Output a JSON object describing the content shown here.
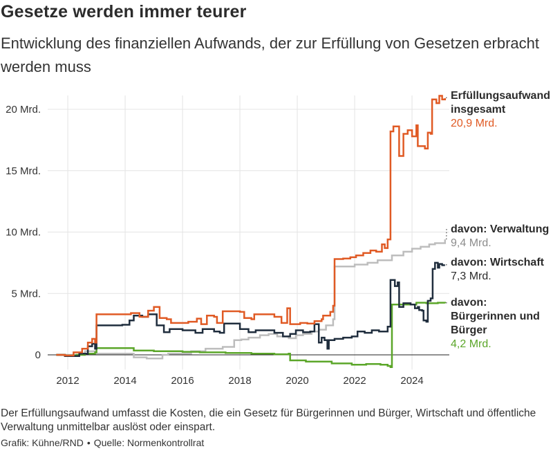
{
  "header": {
    "title": "Gesetze werden immer teurer",
    "subtitle": "Entwicklung des finanziellen Aufwands, der zur Erfüllung von Gesetzen erbracht werden muss"
  },
  "footer": {
    "note": "Der Erfüllungsaufwand umfasst die Kosten, die ein Gesetz für Bürgerinnen und Bürger, Wirtschaft und öffentliche Verwaltung unmittelbar auslöst oder einspart.",
    "credit": "Grafik: Kühne/RND",
    "source": "Quelle: Normenkontrollrat"
  },
  "chart_data": {
    "type": "line",
    "title": "",
    "xlabel": "",
    "ylabel": "",
    "xlim": [
      2011.3,
      2025.3
    ],
    "ylim": [
      -1.2,
      21.5
    ],
    "grid": true,
    "line_shape": "step",
    "x_ticks": [
      {
        "value": 2012,
        "label": "2012"
      },
      {
        "value": 2014,
        "label": "2014"
      },
      {
        "value": 2016,
        "label": "2016"
      },
      {
        "value": 2018,
        "label": "2018"
      },
      {
        "value": 2020,
        "label": "2020"
      },
      {
        "value": 2022,
        "label": "2022"
      },
      {
        "value": 2024,
        "label": "2024"
      }
    ],
    "y_ticks": [
      {
        "value": 0,
        "label": "0"
      },
      {
        "value": 5,
        "label": "5 Mrd."
      },
      {
        "value": 10,
        "label": "10 Mrd."
      },
      {
        "value": 15,
        "label": "15 Mrd."
      },
      {
        "value": 20,
        "label": "20 Mrd."
      }
    ],
    "series": [
      {
        "name": "Erfüllungsaufwand insgesamt",
        "label_lines": [
          "Erfüllungsaufwand",
          "insgesamt"
        ],
        "value_label": "20,9 Mrd.",
        "color": "#e05a24",
        "points": [
          [
            2011.6,
            0
          ],
          [
            2011.9,
            -0.05
          ],
          [
            2012.2,
            0.2
          ],
          [
            2012.5,
            0.5
          ],
          [
            2012.7,
            1.0
          ],
          [
            2012.85,
            1.3
          ],
          [
            2012.95,
            1.0
          ],
          [
            2013.0,
            3.3
          ],
          [
            2014.2,
            3.4
          ],
          [
            2014.5,
            3.1
          ],
          [
            2014.8,
            3.6
          ],
          [
            2015.0,
            3.9
          ],
          [
            2015.2,
            3.0
          ],
          [
            2015.45,
            2.9
          ],
          [
            2015.6,
            2.6
          ],
          [
            2016.2,
            2.7
          ],
          [
            2016.5,
            2.95
          ],
          [
            2016.65,
            2.5
          ],
          [
            2016.85,
            3.2
          ],
          [
            2017.1,
            3.1
          ],
          [
            2017.2,
            2.6
          ],
          [
            2017.4,
            3.55
          ],
          [
            2018.0,
            3.5
          ],
          [
            2018.15,
            3.0
          ],
          [
            2018.4,
            2.9
          ],
          [
            2018.5,
            3.3
          ],
          [
            2019.2,
            3.1
          ],
          [
            2019.45,
            2.6
          ],
          [
            2019.65,
            3.8
          ],
          [
            2019.75,
            2.5
          ],
          [
            2020.1,
            2.6
          ],
          [
            2020.35,
            2.55
          ],
          [
            2020.6,
            2.75
          ],
          [
            2020.85,
            2.9
          ],
          [
            2020.9,
            3.2
          ],
          [
            2021.15,
            3.5
          ],
          [
            2021.25,
            4.0
          ],
          [
            2021.3,
            7.8
          ],
          [
            2021.6,
            7.85
          ],
          [
            2021.85,
            7.95
          ],
          [
            2022.05,
            8.1
          ],
          [
            2022.3,
            8.3
          ],
          [
            2022.55,
            8.5
          ],
          [
            2022.75,
            8.4
          ],
          [
            2022.95,
            9.0
          ],
          [
            2023.05,
            8.7
          ],
          [
            2023.15,
            9.4
          ],
          [
            2023.25,
            18.2
          ],
          [
            2023.35,
            18.6
          ],
          [
            2023.55,
            16.2
          ],
          [
            2023.7,
            18.0
          ],
          [
            2023.85,
            18.3
          ],
          [
            2024.0,
            17.8
          ],
          [
            2024.15,
            18.7
          ],
          [
            2024.2,
            17.0
          ],
          [
            2024.45,
            16.8
          ],
          [
            2024.55,
            18.1
          ],
          [
            2024.65,
            18.0
          ],
          [
            2024.7,
            20.8
          ],
          [
            2024.85,
            20.5
          ],
          [
            2024.95,
            21.1
          ],
          [
            2025.05,
            20.8
          ],
          [
            2025.15,
            20.9
          ]
        ]
      },
      {
        "name": "davon: Verwaltung",
        "label_lines": [
          "davon: Verwaltung"
        ],
        "value_label": "9,4 Mrd.",
        "color": "#bdbdbd",
        "points": [
          [
            2011.6,
            0
          ],
          [
            2012.6,
            0.3
          ],
          [
            2013.0,
            0.1
          ],
          [
            2014.3,
            -0.2
          ],
          [
            2014.75,
            -0.3
          ],
          [
            2015.3,
            0
          ],
          [
            2015.5,
            0.1
          ],
          [
            2016.3,
            0.3
          ],
          [
            2016.8,
            0.5
          ],
          [
            2017.4,
            0.65
          ],
          [
            2017.8,
            1.2
          ],
          [
            2018.05,
            1.25
          ],
          [
            2018.3,
            1.4
          ],
          [
            2018.7,
            1.6
          ],
          [
            2019.0,
            1.7
          ],
          [
            2019.3,
            1.5
          ],
          [
            2019.7,
            1.35
          ],
          [
            2019.95,
            1.6
          ],
          [
            2020.2,
            1.7
          ],
          [
            2020.5,
            1.9
          ],
          [
            2020.75,
            2.05
          ],
          [
            2021.0,
            2.4
          ],
          [
            2021.25,
            2.9
          ],
          [
            2021.3,
            7.2
          ],
          [
            2022.0,
            7.35
          ],
          [
            2022.45,
            7.5
          ],
          [
            2022.8,
            7.7
          ],
          [
            2023.3,
            8.1
          ],
          [
            2023.7,
            8.4
          ],
          [
            2024.0,
            8.65
          ],
          [
            2024.3,
            8.8
          ],
          [
            2024.6,
            9.0
          ],
          [
            2024.8,
            9.1
          ],
          [
            2025.15,
            9.4
          ]
        ]
      },
      {
        "name": "davon: Wirtschaft",
        "label_lines": [
          "davon: Wirtschaft"
        ],
        "value_label": "7,3 Mrd.",
        "color": "#1f2d3d",
        "points": [
          [
            2011.6,
            0
          ],
          [
            2011.9,
            -0.1
          ],
          [
            2012.4,
            0.1
          ],
          [
            2012.7,
            0.7
          ],
          [
            2012.85,
            0.9
          ],
          [
            2012.95,
            0.5
          ],
          [
            2013.0,
            2.4
          ],
          [
            2013.9,
            2.45
          ],
          [
            2014.15,
            2.8
          ],
          [
            2014.3,
            3.2
          ],
          [
            2014.6,
            3.1
          ],
          [
            2014.8,
            3.3
          ],
          [
            2015.1,
            2.4
          ],
          [
            2015.35,
            1.85
          ],
          [
            2015.55,
            2.1
          ],
          [
            2016.0,
            2.0
          ],
          [
            2016.45,
            1.8
          ],
          [
            2016.7,
            2.1
          ],
          [
            2017.1,
            1.9
          ],
          [
            2017.3,
            1.8
          ],
          [
            2017.45,
            2.55
          ],
          [
            2018.0,
            2.1
          ],
          [
            2018.3,
            1.85
          ],
          [
            2018.55,
            2.0
          ],
          [
            2019.2,
            1.8
          ],
          [
            2019.5,
            1.5
          ],
          [
            2019.75,
            1.7
          ],
          [
            2019.95,
            2.0
          ],
          [
            2020.2,
            1.85
          ],
          [
            2020.45,
            1.9
          ],
          [
            2020.6,
            2.5
          ],
          [
            2020.75,
            1.0
          ],
          [
            2020.85,
            1.4
          ],
          [
            2020.95,
            1.2
          ],
          [
            2021.05,
            0.5
          ],
          [
            2021.1,
            1.2
          ],
          [
            2021.3,
            1.3
          ],
          [
            2021.6,
            1.4
          ],
          [
            2021.9,
            1.5
          ],
          [
            2022.1,
            1.9
          ],
          [
            2022.35,
            1.8
          ],
          [
            2022.6,
            2.0
          ],
          [
            2022.85,
            1.9
          ],
          [
            2023.15,
            2.3
          ],
          [
            2023.25,
            6.1
          ],
          [
            2023.4,
            5.6
          ],
          [
            2023.5,
            5.9
          ],
          [
            2023.55,
            3.9
          ],
          [
            2023.7,
            4.2
          ],
          [
            2023.95,
            4.1
          ],
          [
            2024.1,
            3.8
          ],
          [
            2024.2,
            3.9
          ],
          [
            2024.25,
            3.65
          ],
          [
            2024.35,
            3.6
          ],
          [
            2024.4,
            2.8
          ],
          [
            2024.5,
            2.7
          ],
          [
            2024.55,
            4.4
          ],
          [
            2024.65,
            4.6
          ],
          [
            2024.72,
            7.0
          ],
          [
            2024.8,
            7.5
          ],
          [
            2024.9,
            7.1
          ],
          [
            2024.95,
            7.4
          ],
          [
            2025.05,
            7.3
          ],
          [
            2025.15,
            7.3
          ]
        ]
      },
      {
        "name": "davon: Bürgerinnen und Bürger",
        "label_lines": [
          "davon:",
          "Bürgerinnen und",
          "Bürger"
        ],
        "value_label": "4,2 Mrd.",
        "color": "#5ba629",
        "points": [
          [
            2011.6,
            0
          ],
          [
            2011.9,
            -0.05
          ],
          [
            2012.3,
            0
          ],
          [
            2012.6,
            0.1
          ],
          [
            2012.95,
            0.2
          ],
          [
            2013.0,
            0.55
          ],
          [
            2014.3,
            0.35
          ],
          [
            2015.0,
            0.3
          ],
          [
            2016.0,
            0.25
          ],
          [
            2016.6,
            0.2
          ],
          [
            2017.5,
            0.15
          ],
          [
            2018.4,
            0.1
          ],
          [
            2019.2,
            0.05
          ],
          [
            2019.7,
            0.1
          ],
          [
            2019.75,
            -0.45
          ],
          [
            2020.3,
            -0.55
          ],
          [
            2021.2,
            -0.7
          ],
          [
            2021.9,
            -0.8
          ],
          [
            2022.4,
            -0.75
          ],
          [
            2022.9,
            -0.8
          ],
          [
            2023.15,
            -0.9
          ],
          [
            2023.25,
            -1.0
          ],
          [
            2023.3,
            4.1
          ],
          [
            2023.8,
            4.1
          ],
          [
            2024.15,
            4.25
          ],
          [
            2024.5,
            4.2
          ],
          [
            2024.9,
            4.25
          ],
          [
            2025.15,
            4.2
          ]
        ]
      }
    ]
  }
}
